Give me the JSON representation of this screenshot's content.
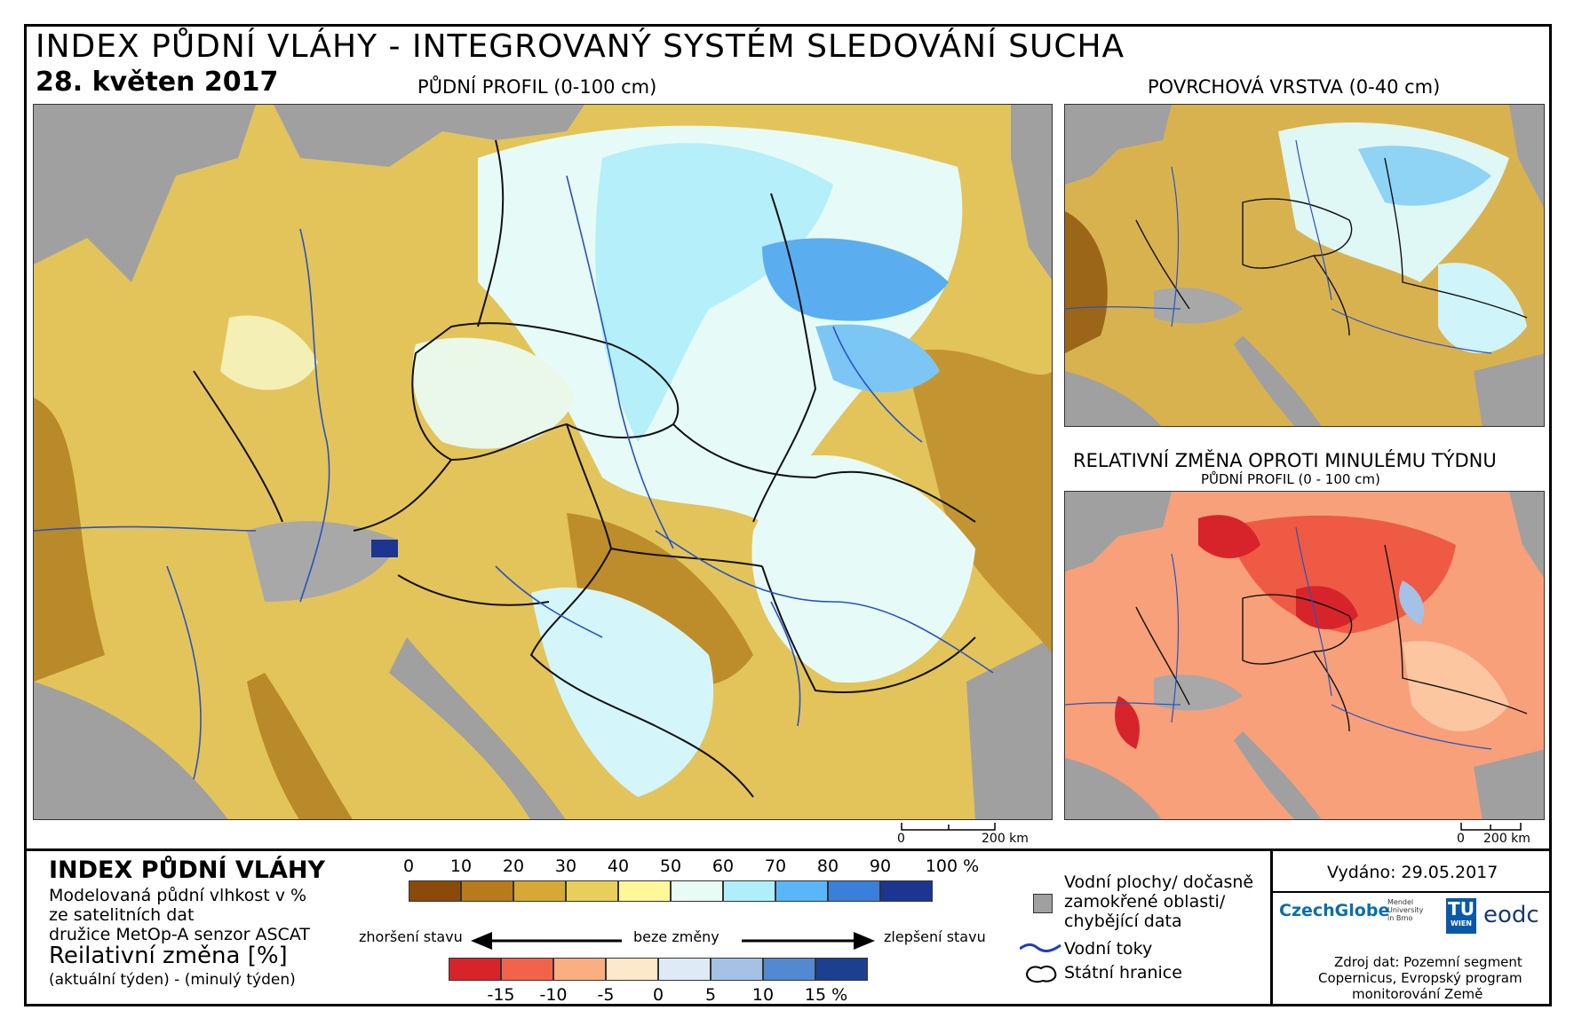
{
  "header": {
    "title": "INDEX PŮDNÍ VLÁHY - INTEGROVANÝ SYSTÉM SLEDOVÁNÍ SUCHA",
    "date": "28. květen 2017"
  },
  "maps": {
    "main_label": "PŮDNÍ PROFIL (0-100 cm)",
    "top_right_label": "POVRCHOVÁ VRSTVA (0-40 cm)",
    "bottom_right_label": "RELATIVNÍ ZMĚNA OPROTI MINULÉMU TÝDNU",
    "bottom_right_sublabel": "PŮDNÍ PROFIL (0 - 100 cm)",
    "scale_zero": "0",
    "scale_main": "200 km",
    "scale_small": "200 km"
  },
  "legend": {
    "title": "INDEX PŮDNÍ VLÁHY",
    "desc_1": "Modelovaná půdní vlhkost v %",
    "desc_2": "ze satelitních dat",
    "desc_3": "družice MetOp-A senzor ASCAT",
    "change_title": "Reilativní změna [%]",
    "change_desc": "(aktuální týden) - (minulý týden)",
    "moisture_ticks": [
      "0",
      "10",
      "20",
      "30",
      "40",
      "50",
      "60",
      "70",
      "80",
      "90",
      "100 %"
    ],
    "moisture_colors": [
      "#8c4a0a",
      "#b87a1c",
      "#d6a836",
      "#e8cf5c",
      "#fff899",
      "#e8fbf5",
      "#aeeffa",
      "#59b6fa",
      "#3a7fd9",
      "#1c3591"
    ],
    "change_ticks": [
      "-15",
      "-10",
      "-5",
      "0",
      "5",
      "10",
      "15 %"
    ],
    "change_colors": [
      "#d7242b",
      "#f2634c",
      "#fbae82",
      "#fde8cc",
      "#deebf7",
      "#a5c2e6",
      "#5289d1",
      "#1d3f8f"
    ],
    "worse": "zhoršení stavu",
    "nochange": "beze změny",
    "better": "zlepšení stavu",
    "water_bodies_1": "Vodní plochy/ dočasně",
    "water_bodies_2": "zamokřené oblasti/",
    "water_bodies_3": "chybějící data",
    "rivers": "Vodní toky",
    "borders": "Státní hranice"
  },
  "info": {
    "issued": "Vydáno: 29.05.2017",
    "logo_czechglobe": "CzechGlobe",
    "logo_mendel_1": "Mendel",
    "logo_mendel_2": "University",
    "logo_mendel_3": "in Brno",
    "logo_tu": "TU",
    "logo_wien": "WIEN",
    "logo_eodc": "eodc",
    "source_1": "Zdroj dat: Pozemní segment",
    "source_2": "Copernicus, Evropský program",
    "source_3": "monitorování Země"
  }
}
